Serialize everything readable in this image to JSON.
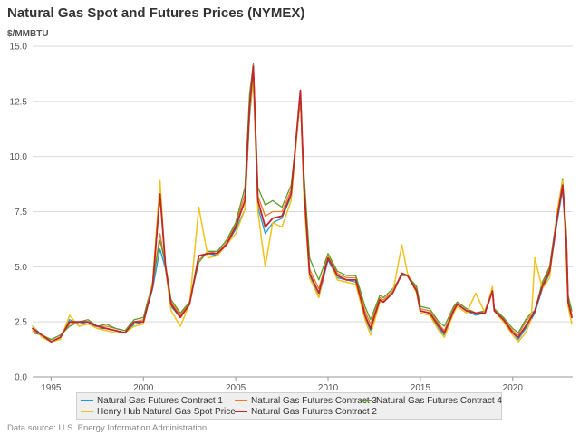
{
  "chart_data": {
    "type": "line",
    "title": "Natural Gas Spot and Futures Prices (NYMEX)",
    "ylabel": "$/MMBTU",
    "xlim": [
      1994.0,
      2023.25
    ],
    "ylim": [
      0,
      15
    ],
    "yticks": [
      "0.0",
      "2.5",
      "5.0",
      "7.5",
      "10.0",
      "12.5",
      "15.0"
    ],
    "xticks": [
      "1995",
      "2000",
      "2005",
      "2010",
      "2015",
      "2020"
    ],
    "grid": "horizontal",
    "legend_position": "bottom",
    "x": [
      1994.0,
      1994.5,
      1995.0,
      1995.5,
      1996.0,
      1996.5,
      1997.0,
      1997.5,
      1998.0,
      1998.5,
      1999.0,
      1999.5,
      2000.0,
      2000.5,
      2000.9,
      2001.2,
      2001.5,
      2002.0,
      2002.5,
      2003.0,
      2003.5,
      2004.0,
      2004.5,
      2005.0,
      2005.5,
      2005.75,
      2005.95,
      2006.2,
      2006.6,
      2007.0,
      2007.5,
      2008.0,
      2008.5,
      2008.7,
      2009.0,
      2009.5,
      2010.0,
      2010.5,
      2011.0,
      2011.5,
      2012.0,
      2012.3,
      2012.8,
      2013.0,
      2013.5,
      2014.0,
      2014.3,
      2014.8,
      2015.0,
      2015.5,
      2016.0,
      2016.3,
      2016.8,
      2017.0,
      2017.5,
      2018.0,
      2018.5,
      2018.9,
      2019.0,
      2019.5,
      2020.0,
      2020.3,
      2020.7,
      2021.0,
      2021.2,
      2021.6,
      2022.0,
      2022.4,
      2022.7,
      2022.9,
      2023.0,
      2023.2
    ],
    "series": [
      {
        "name": "Natural Gas Futures Contract 1",
        "color": "#1f9ad6",
        "width": 1.3,
        "values": [
          2.3,
          1.9,
          1.6,
          1.8,
          2.6,
          2.4,
          2.5,
          2.2,
          2.2,
          2.1,
          2.0,
          2.4,
          2.5,
          4.0,
          5.8,
          4.9,
          3.2,
          2.7,
          3.3,
          5.5,
          5.6,
          5.5,
          6.0,
          6.7,
          7.6,
          11.8,
          13.5,
          7.7,
          6.5,
          7.0,
          7.2,
          8.2,
          12.7,
          8.5,
          4.6,
          3.6,
          5.3,
          4.5,
          4.4,
          4.3,
          2.7,
          2.1,
          3.4,
          3.4,
          3.8,
          4.7,
          4.6,
          3.9,
          2.9,
          2.8,
          2.2,
          1.9,
          2.9,
          3.3,
          3.0,
          2.8,
          2.9,
          3.9,
          3.0,
          2.5,
          2.0,
          1.7,
          2.2,
          2.6,
          2.9,
          4.0,
          4.7,
          7.0,
          8.5,
          6.0,
          3.3,
          2.7
        ]
      },
      {
        "name": "Natural Gas Futures Contract 3",
        "color": "#ee7a2a",
        "width": 1.3,
        "values": [
          2.1,
          1.9,
          1.7,
          1.9,
          2.4,
          2.5,
          2.5,
          2.3,
          2.3,
          2.2,
          2.1,
          2.5,
          2.6,
          4.2,
          6.5,
          5.0,
          3.4,
          2.8,
          3.4,
          5.3,
          5.7,
          5.6,
          6.1,
          6.9,
          8.3,
          12.5,
          14.0,
          8.2,
          7.3,
          7.5,
          7.5,
          8.5,
          12.6,
          8.8,
          4.9,
          4.0,
          5.5,
          4.7,
          4.5,
          4.5,
          3.0,
          2.4,
          3.6,
          3.5,
          3.9,
          4.6,
          4.6,
          4.0,
          3.1,
          3.0,
          2.4,
          2.1,
          3.1,
          3.4,
          3.1,
          2.9,
          3.0,
          4.0,
          3.1,
          2.6,
          2.1,
          1.9,
          2.5,
          2.8,
          3.0,
          4.2,
          4.9,
          7.3,
          8.8,
          6.4,
          3.6,
          2.8
        ]
      },
      {
        "name": "Natural Gas Futures Contract 4",
        "color": "#5d9b2d",
        "width": 1.3,
        "values": [
          2.0,
          1.9,
          1.7,
          1.9,
          2.3,
          2.5,
          2.6,
          2.3,
          2.4,
          2.2,
          2.1,
          2.6,
          2.7,
          4.3,
          6.2,
          5.1,
          3.5,
          2.9,
          3.4,
          5.2,
          5.7,
          5.7,
          6.2,
          7.0,
          8.6,
          12.8,
          14.2,
          8.6,
          7.8,
          8.0,
          7.7,
          8.7,
          12.5,
          9.2,
          5.4,
          4.4,
          5.6,
          4.8,
          4.6,
          4.6,
          3.2,
          2.6,
          3.7,
          3.6,
          4.0,
          4.6,
          4.6,
          4.1,
          3.2,
          3.1,
          2.5,
          2.3,
          3.2,
          3.4,
          3.1,
          2.9,
          3.0,
          3.9,
          3.1,
          2.7,
          2.2,
          2.0,
          2.6,
          2.9,
          3.0,
          4.3,
          5.0,
          7.4,
          9.0,
          6.6,
          3.7,
          3.0
        ]
      },
      {
        "name": "Henry Hub Natural Gas Spot Price",
        "color": "#f2c21b",
        "width": 1.5,
        "values": [
          2.3,
          1.8,
          1.6,
          1.7,
          2.8,
          2.3,
          2.4,
          2.2,
          2.1,
          2.0,
          2.0,
          2.3,
          2.4,
          4.3,
          8.9,
          4.9,
          3.0,
          2.3,
          3.3,
          7.7,
          5.4,
          5.5,
          6.0,
          6.5,
          7.6,
          12.0,
          13.5,
          7.5,
          5.0,
          7.0,
          6.8,
          8.0,
          12.8,
          8.0,
          4.5,
          3.6,
          5.5,
          4.4,
          4.3,
          4.2,
          2.6,
          1.9,
          3.4,
          3.4,
          3.8,
          6.0,
          4.7,
          3.8,
          2.9,
          2.8,
          2.1,
          1.8,
          2.9,
          3.2,
          2.9,
          3.8,
          2.9,
          4.1,
          3.0,
          2.5,
          1.9,
          1.6,
          2.0,
          2.6,
          5.4,
          4.0,
          4.5,
          7.5,
          8.9,
          5.3,
          3.2,
          2.4
        ]
      },
      {
        "name": "Natural Gas Futures Contract 2",
        "color": "#c0272d",
        "width": 1.8,
        "values": [
          2.2,
          1.9,
          1.6,
          1.8,
          2.5,
          2.5,
          2.5,
          2.3,
          2.2,
          2.1,
          2.0,
          2.5,
          2.5,
          4.1,
          8.3,
          5.0,
          3.3,
          2.7,
          3.3,
          5.5,
          5.6,
          5.6,
          6.0,
          6.8,
          8.0,
          12.2,
          14.1,
          8.0,
          6.8,
          7.2,
          7.3,
          8.3,
          13.0,
          8.6,
          4.7,
          3.8,
          5.4,
          4.6,
          4.4,
          4.4,
          2.8,
          2.2,
          3.5,
          3.4,
          3.8,
          4.7,
          4.6,
          3.9,
          3.0,
          2.9,
          2.3,
          2.0,
          3.0,
          3.3,
          3.0,
          2.9,
          2.9,
          3.9,
          3.0,
          2.6,
          2.0,
          1.8,
          2.3,
          2.7,
          3.0,
          4.1,
          4.8,
          7.2,
          8.7,
          6.2,
          3.4,
          2.7
        ]
      }
    ]
  },
  "legend": [
    {
      "label": "Natural Gas Futures Contract 1",
      "color": "#1f9ad6"
    },
    {
      "label": "Natural Gas Futures Contract 3",
      "color": "#ee7a2a"
    },
    {
      "label": "Natural Gas Futures Contract 4",
      "color": "#5d9b2d"
    },
    {
      "label": "Henry Hub Natural Gas Spot Price",
      "color": "#f2c21b"
    },
    {
      "label": "Natural Gas Futures Contract 2",
      "color": "#c0272d"
    }
  ],
  "source": "Data source: U.S. Energy Information Administration"
}
